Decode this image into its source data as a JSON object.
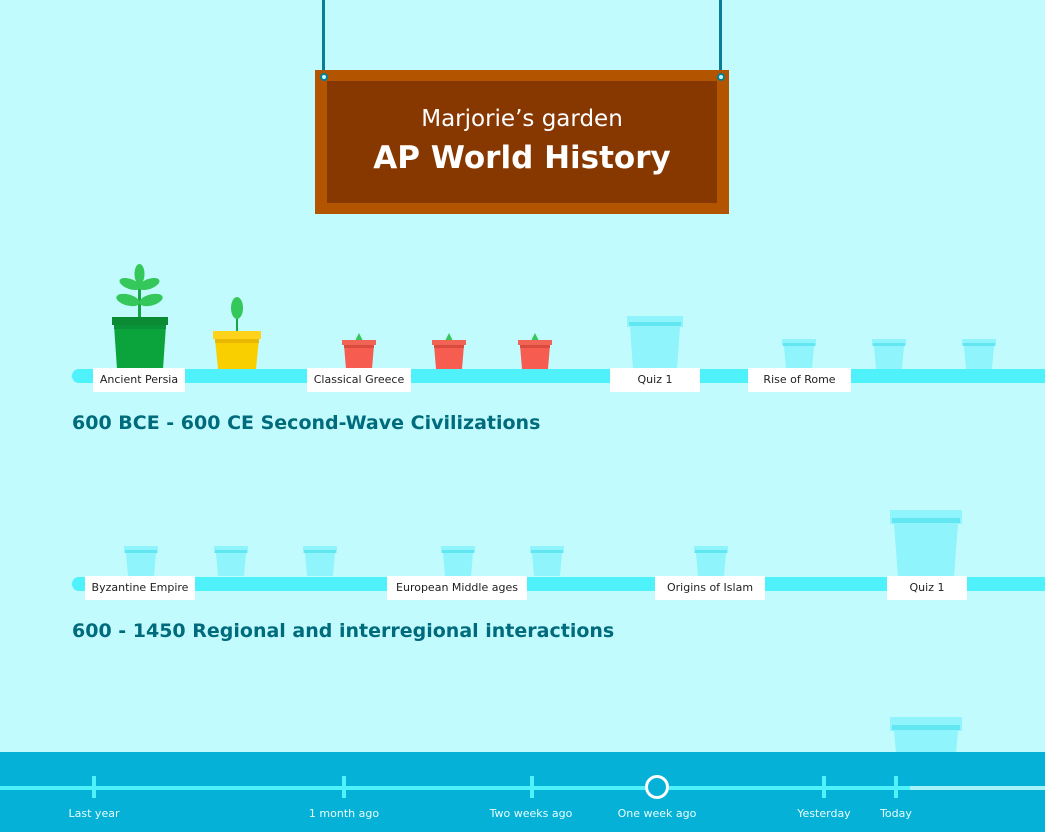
{
  "sign": {
    "subtitle": "Marjorie’s garden",
    "title": "AP World History"
  },
  "shelf1": {
    "labels": [
      "Ancient Persia",
      "Classical Greece",
      "Quiz 1",
      "Rise of Rome"
    ],
    "section_title": "600 BCE - 600 CE Second-Wave Civilizations"
  },
  "shelf2": {
    "labels": [
      "Byzantine Empire",
      "European Middle ages",
      "Origins of Islam",
      "Quiz 1"
    ],
    "section_title": "600 - 1450 Regional and interregional interactions"
  },
  "timeline": {
    "labels": [
      "Last year",
      "1 month ago",
      "Two weeks ago",
      "One week ago",
      "Yesterday",
      "Today"
    ]
  },
  "colors": {
    "background": "#c1fbfd",
    "shelf": "#4ff2fb",
    "sign_frame": "#b35400",
    "sign_board": "#873700",
    "pot_green": "#0aa33c",
    "pot_yellow": "#f9cf00",
    "pot_red": "#f65c50",
    "pot_empty": "#8ff4fb",
    "timeline_bar": "#05b1d6",
    "section_title": "#006b7d"
  }
}
